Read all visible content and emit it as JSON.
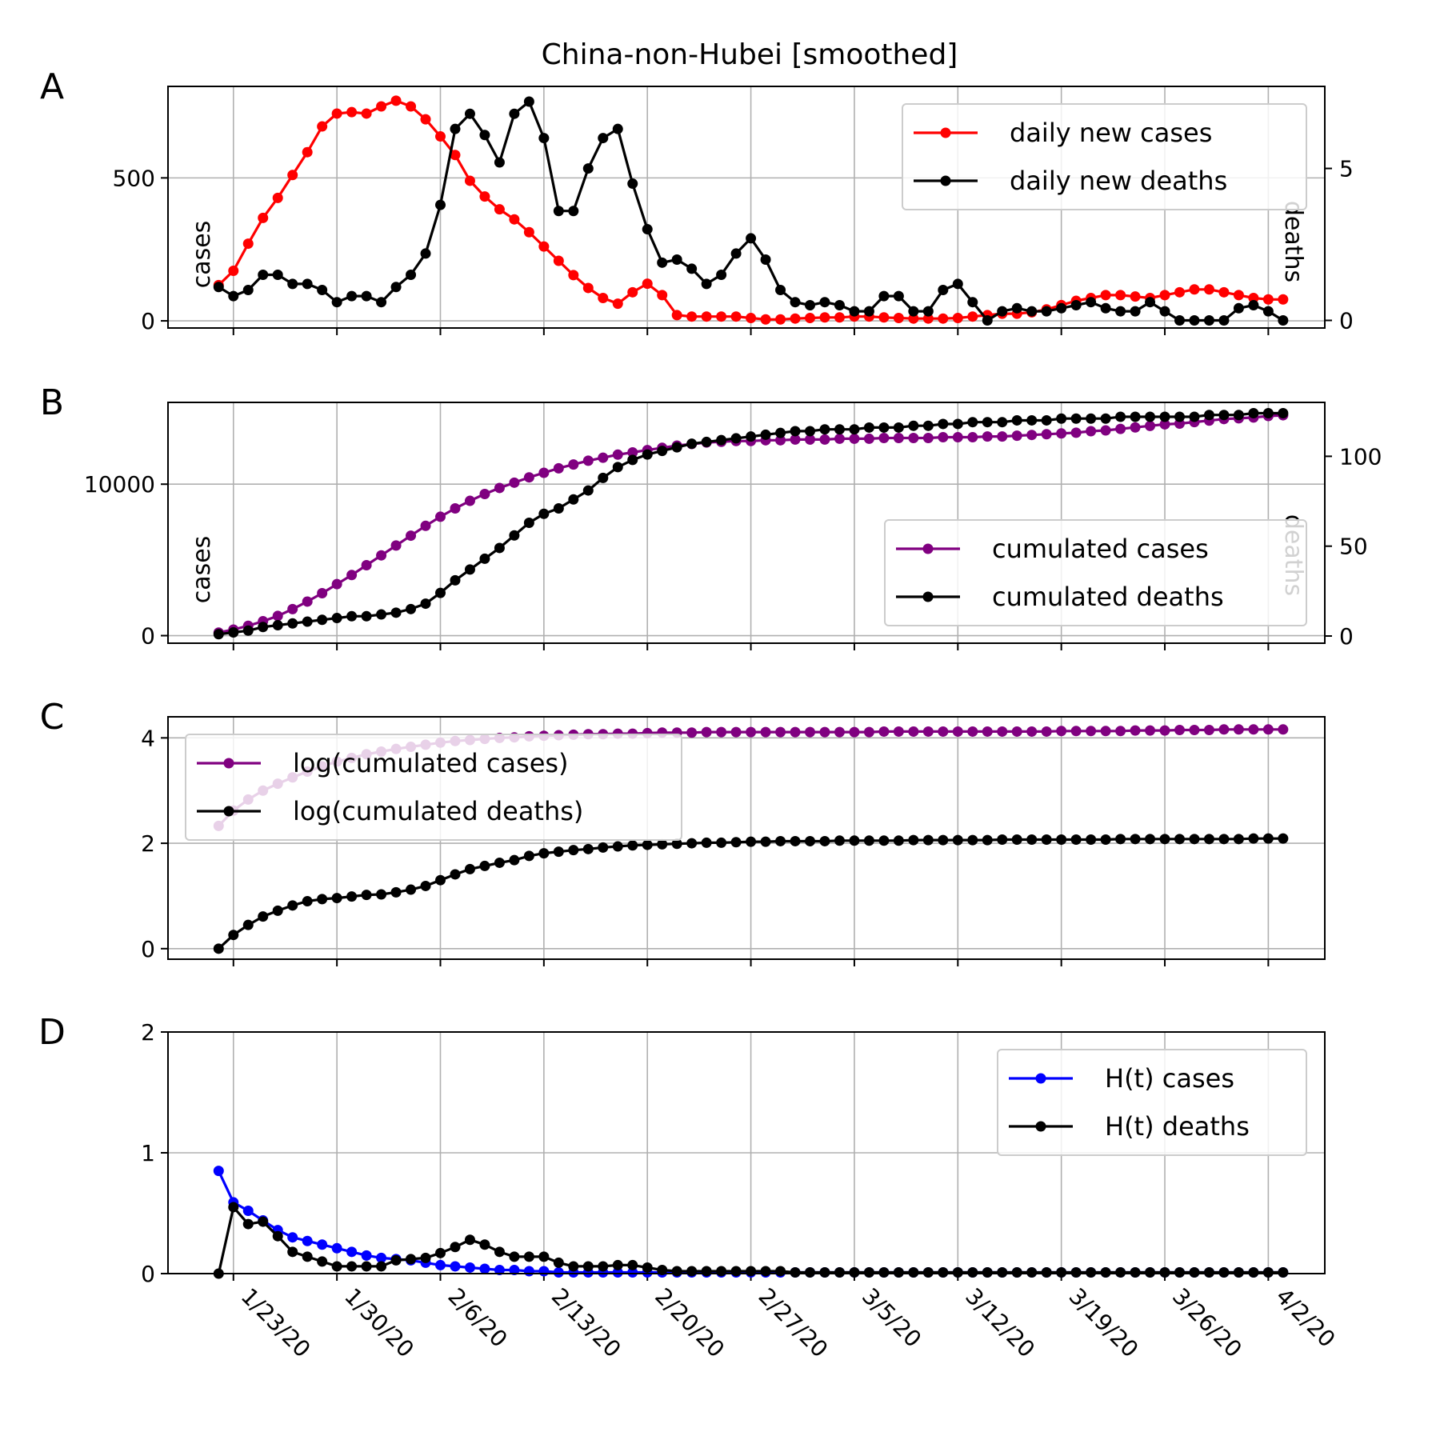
{
  "title": "China-non-Hubei [smoothed]",
  "x_tick_labels": [
    "1/23/20",
    "1/30/20",
    "2/6/20",
    "2/13/20",
    "2/20/20",
    "2/27/20",
    "3/5/20",
    "3/12/20",
    "3/19/20",
    "3/26/20",
    "4/2/20"
  ],
  "colors": {
    "cases": "#ff0000",
    "cumulated": "#800080",
    "deaths": "#000000",
    "ht_cases": "#0000ff"
  },
  "chart_data": [
    {
      "type": "line",
      "panel": "A",
      "x_start": "1/22/20",
      "x_step_days": 1,
      "ylabel": "cases",
      "ylabel_right": "deaths",
      "ylim": [
        -25,
        820
      ],
      "ylim_right": [
        -0.25,
        7.7
      ],
      "yticks": [
        0,
        500
      ],
      "yticks_right": [
        0,
        5
      ],
      "grid": true,
      "legend": "top-right",
      "series": [
        {
          "name": "daily new cases",
          "axis": "left",
          "color_key": "cases",
          "values": [
            125,
            175,
            270,
            360,
            430,
            510,
            590,
            680,
            725,
            730,
            725,
            750,
            770,
            750,
            705,
            645,
            580,
            490,
            435,
            390,
            355,
            310,
            260,
            210,
            160,
            115,
            80,
            60,
            100,
            130,
            90,
            20,
            15,
            15,
            15,
            15,
            10,
            5,
            5,
            8,
            10,
            12,
            12,
            15,
            15,
            12,
            10,
            8,
            8,
            8,
            10,
            15,
            20,
            25,
            25,
            30,
            40,
            55,
            70,
            80,
            90,
            90,
            85,
            80,
            90,
            100,
            110,
            110,
            100,
            90,
            80,
            75,
            75
          ]
        },
        {
          "name": "daily new deaths",
          "axis": "right",
          "color_key": "deaths",
          "values": [
            1.1,
            0.8,
            1.0,
            1.5,
            1.5,
            1.2,
            1.2,
            1.0,
            0.6,
            0.8,
            0.8,
            0.6,
            1.1,
            1.5,
            2.2,
            3.8,
            6.3,
            6.8,
            6.1,
            5.2,
            6.8,
            7.2,
            6.0,
            3.6,
            3.6,
            5.0,
            6.0,
            6.3,
            4.5,
            3.0,
            1.9,
            2.0,
            1.7,
            1.2,
            1.5,
            2.2,
            2.7,
            2.0,
            1.0,
            0.6,
            0.5,
            0.6,
            0.5,
            0.3,
            0.3,
            0.8,
            0.8,
            0.3,
            0.3,
            1.0,
            1.2,
            0.6,
            0.0,
            0.3,
            0.4,
            0.3,
            0.3,
            0.4,
            0.5,
            0.6,
            0.4,
            0.3,
            0.3,
            0.6,
            0.3,
            0.0,
            0.0,
            0.0,
            0.0,
            0.4,
            0.5,
            0.3,
            0.0
          ]
        }
      ]
    },
    {
      "type": "line",
      "panel": "B",
      "x_start": "1/22/20",
      "x_step_days": 1,
      "ylabel": "cases",
      "ylabel_right": "deaths",
      "ylim": [
        -500,
        15400
      ],
      "ylim_right": [
        -4,
        130
      ],
      "yticks": [
        0,
        10000
      ],
      "yticks_right": [
        0,
        50,
        100
      ],
      "grid": true,
      "legend": "lower-right",
      "series": [
        {
          "name": "cumulated cases",
          "axis": "left",
          "color_key": "cumulated",
          "values": [
            200,
            400,
            650,
            950,
            1300,
            1750,
            2250,
            2800,
            3400,
            4000,
            4650,
            5300,
            5950,
            6600,
            7250,
            7850,
            8400,
            8900,
            9350,
            9750,
            10100,
            10450,
            10750,
            11050,
            11300,
            11550,
            11750,
            11950,
            12100,
            12250,
            12400,
            12550,
            12650,
            12750,
            12800,
            12850,
            12850,
            12900,
            12900,
            12950,
            12950,
            12950,
            13000,
            13000,
            13000,
            13050,
            13050,
            13050,
            13050,
            13100,
            13100,
            13100,
            13150,
            13150,
            13200,
            13250,
            13300,
            13350,
            13400,
            13500,
            13550,
            13650,
            13750,
            13850,
            13950,
            14000,
            14100,
            14200,
            14300,
            14350,
            14400,
            14500,
            14550
          ]
        },
        {
          "name": "cumulated deaths",
          "axis": "right",
          "color_key": "deaths",
          "values": [
            1,
            2,
            3,
            5,
            6,
            7,
            8,
            9,
            10,
            11,
            11,
            12,
            13,
            15,
            18,
            24,
            31,
            37,
            43,
            49,
            56,
            63,
            68,
            71,
            76,
            81,
            88,
            94,
            98,
            101,
            103,
            105,
            107,
            108,
            109,
            110,
            111,
            112,
            113,
            114,
            114,
            115,
            115,
            115,
            116,
            116,
            116,
            117,
            117,
            118,
            118,
            119,
            119,
            119,
            120,
            120,
            120,
            121,
            121,
            121,
            121,
            122,
            122,
            122,
            122,
            122,
            122,
            123,
            123,
            123,
            124,
            124,
            124
          ]
        }
      ]
    },
    {
      "type": "line",
      "panel": "C",
      "x_start": "1/22/20",
      "x_step_days": 1,
      "ylim": [
        -0.2,
        4.4
      ],
      "yticks": [
        0,
        2,
        4
      ],
      "grid": true,
      "legend": "top-left",
      "series": [
        {
          "name": "log(cumulated cases)",
          "color_key": "cumulated",
          "values": [
            2.33,
            2.62,
            2.83,
            3.0,
            3.13,
            3.25,
            3.36,
            3.46,
            3.55,
            3.62,
            3.69,
            3.74,
            3.79,
            3.83,
            3.87,
            3.91,
            3.94,
            3.96,
            3.98,
            4.0,
            4.01,
            4.03,
            4.04,
            4.05,
            4.06,
            4.07,
            4.07,
            4.08,
            4.08,
            4.09,
            4.1,
            4.1,
            4.1,
            4.11,
            4.11,
            4.11,
            4.11,
            4.11,
            4.11,
            4.11,
            4.11,
            4.11,
            4.11,
            4.11,
            4.11,
            4.12,
            4.12,
            4.12,
            4.12,
            4.12,
            4.12,
            4.12,
            4.12,
            4.12,
            4.12,
            4.12,
            4.12,
            4.13,
            4.13,
            4.13,
            4.13,
            4.13,
            4.14,
            4.14,
            4.14,
            4.15,
            4.15,
            4.15,
            4.16,
            4.16,
            4.16,
            4.16,
            4.16
          ]
        },
        {
          "name": "log(cumulated deaths)",
          "color_key": "deaths",
          "values": [
            0.0,
            0.26,
            0.45,
            0.61,
            0.72,
            0.82,
            0.9,
            0.94,
            0.96,
            0.99,
            1.02,
            1.03,
            1.07,
            1.12,
            1.19,
            1.3,
            1.41,
            1.51,
            1.57,
            1.63,
            1.68,
            1.76,
            1.81,
            1.84,
            1.87,
            1.89,
            1.92,
            1.94,
            1.96,
            1.97,
            1.98,
            1.99,
            2.0,
            2.01,
            2.01,
            2.02,
            2.03,
            2.03,
            2.04,
            2.04,
            2.04,
            2.04,
            2.05,
            2.05,
            2.05,
            2.05,
            2.05,
            2.06,
            2.06,
            2.06,
            2.06,
            2.06,
            2.06,
            2.07,
            2.07,
            2.07,
            2.07,
            2.07,
            2.07,
            2.07,
            2.07,
            2.08,
            2.08,
            2.08,
            2.08,
            2.08,
            2.08,
            2.08,
            2.08,
            2.08,
            2.09,
            2.09,
            2.09
          ]
        }
      ]
    },
    {
      "type": "line",
      "panel": "D",
      "x_start": "1/22/20",
      "x_step_days": 1,
      "ylim": [
        0,
        2
      ],
      "yticks": [
        0,
        1,
        2
      ],
      "grid": true,
      "legend": "top-right",
      "series": [
        {
          "name": "H(t) cases",
          "color_key": "ht_cases",
          "values": [
            0.85,
            0.59,
            0.52,
            0.44,
            0.36,
            0.3,
            0.27,
            0.24,
            0.21,
            0.18,
            0.15,
            0.13,
            0.12,
            0.11,
            0.09,
            0.07,
            0.06,
            0.05,
            0.04,
            0.03,
            0.03,
            0.02,
            0.02,
            0.01,
            0.01,
            0.01,
            0.01,
            0.01,
            0.01,
            0.01,
            0.01,
            0.01,
            0.01,
            0.01,
            0.01,
            0.01,
            0.01,
            0.01,
            0.01,
            0.01,
            0.01,
            0.01,
            0.01,
            0.01,
            0.01,
            0.01,
            0.01,
            0.01,
            0.01,
            0.01,
            0.01,
            0.01,
            0.01,
            0.01,
            0.01,
            0.01,
            0.01,
            0.01,
            0.01,
            0.01,
            0.01,
            0.01,
            0.01,
            0.01,
            0.01,
            0.01,
            0.01,
            0.01,
            0.01,
            0.01,
            0.01,
            0.01,
            0.01
          ]
        },
        {
          "name": "H(t) deaths",
          "color_key": "deaths",
          "values": [
            0.0,
            0.55,
            0.41,
            0.43,
            0.31,
            0.18,
            0.14,
            0.1,
            0.06,
            0.06,
            0.06,
            0.06,
            0.11,
            0.12,
            0.13,
            0.17,
            0.22,
            0.28,
            0.24,
            0.18,
            0.14,
            0.14,
            0.14,
            0.09,
            0.06,
            0.06,
            0.06,
            0.07,
            0.07,
            0.05,
            0.03,
            0.02,
            0.02,
            0.02,
            0.02,
            0.02,
            0.02,
            0.02,
            0.02,
            0.01,
            0.01,
            0.01,
            0.01,
            0.01,
            0.01,
            0.01,
            0.01,
            0.01,
            0.01,
            0.01,
            0.01,
            0.01,
            0.01,
            0.01,
            0.01,
            0.01,
            0.01,
            0.01,
            0.01,
            0.01,
            0.01,
            0.01,
            0.01,
            0.01,
            0.01,
            0.01,
            0.01,
            0.01,
            0.01,
            0.01,
            0.01,
            0.01,
            0.01
          ]
        }
      ]
    }
  ]
}
